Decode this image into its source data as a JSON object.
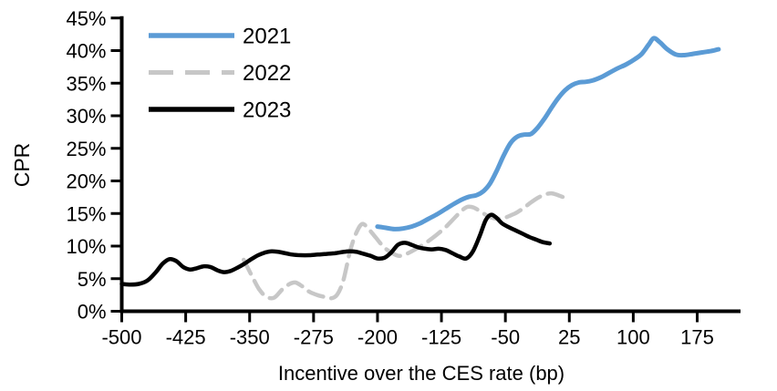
{
  "chart_data": {
    "type": "line",
    "title": "",
    "xlabel": "Incentive over the CES rate (bp)",
    "ylabel": "CPR",
    "xlim": [
      -500,
      227
    ],
    "ylim": [
      0,
      45
    ],
    "grid": false,
    "legend_position": "top-left-inside",
    "x_ticks": [
      -500,
      -425,
      -350,
      -275,
      -200,
      -125,
      -50,
      25,
      100,
      175
    ],
    "x_tick_labels": [
      "-500",
      "-425",
      "-350",
      "-275",
      "-200",
      "-125",
      "-50",
      "25",
      "100",
      "175"
    ],
    "y_ticks": [
      0,
      5,
      10,
      15,
      20,
      25,
      30,
      35,
      40,
      45
    ],
    "y_tick_labels": [
      "0%",
      "5%",
      "10%",
      "15%",
      "20%",
      "25%",
      "30%",
      "35%",
      "40%",
      "45%"
    ],
    "axis_color": "#000000",
    "series": [
      {
        "name": "2021",
        "color": "#5B9BD5",
        "dashed": false,
        "x": [
          -200,
          -190,
          -180,
          -170,
          -160,
          -150,
          -140,
          -130,
          -120,
          -110,
          -100,
          -92,
          -84,
          -76,
          -68,
          -60,
          -52,
          -44,
          -36,
          -28,
          -20,
          -12,
          -4,
          4,
          12,
          20,
          28,
          36,
          44,
          52,
          62,
          72,
          82,
          92,
          102,
          110,
          118,
          124,
          131,
          140,
          150,
          160,
          170,
          180,
          190,
          200
        ],
        "y": [
          13.0,
          12.8,
          12.6,
          12.7,
          13.0,
          13.5,
          14.2,
          14.9,
          15.7,
          16.5,
          17.2,
          17.6,
          17.8,
          18.4,
          19.6,
          21.6,
          23.9,
          25.8,
          26.8,
          27.1,
          27.2,
          28.2,
          29.6,
          31.2,
          32.7,
          33.9,
          34.7,
          35.1,
          35.2,
          35.4,
          35.9,
          36.6,
          37.3,
          37.9,
          38.7,
          39.5,
          40.9,
          41.9,
          41.3,
          40.2,
          39.4,
          39.3,
          39.5,
          39.7,
          39.9,
          40.2
        ]
      },
      {
        "name": "2022",
        "color": "#C7C7C7",
        "dashed": true,
        "x": [
          -357,
          -348,
          -339,
          -330,
          -321,
          -312,
          -303,
          -296,
          -288,
          -280,
          -271,
          -262,
          -254,
          -247,
          -240,
          -232,
          -225,
          -218,
          -211,
          -202,
          -193,
          -184,
          -175,
          -166,
          -157,
          -148,
          -139,
          -130,
          -121,
          -112,
          -103,
          -95,
          -87,
          -78,
          -69,
          -60,
          -52,
          -44,
          -36,
          -28,
          -20,
          -12,
          -4,
          4,
          12,
          20
        ],
        "y": [
          7.9,
          5.6,
          3.4,
          2.2,
          2.1,
          3.3,
          4.2,
          4.4,
          3.8,
          3.0,
          2.5,
          2.2,
          2.0,
          2.6,
          4.8,
          9.3,
          12.0,
          13.4,
          12.7,
          11.3,
          9.9,
          9.0,
          8.5,
          8.8,
          9.4,
          10.1,
          10.9,
          11.8,
          12.8,
          14.0,
          15.2,
          16.0,
          15.9,
          15.2,
          14.5,
          14.2,
          14.3,
          14.7,
          15.2,
          15.9,
          16.7,
          17.4,
          17.9,
          18.1,
          17.8,
          17.4
        ]
      },
      {
        "name": "2023",
        "color": "#000000",
        "dashed": false,
        "x": [
          -500,
          -490,
          -480,
          -470,
          -460,
          -452,
          -444,
          -436,
          -428,
          -420,
          -412,
          -404,
          -396,
          -388,
          -380,
          -372,
          -364,
          -356,
          -348,
          -340,
          -332,
          -324,
          -316,
          -308,
          -300,
          -290,
          -280,
          -270,
          -260,
          -250,
          -240,
          -232,
          -224,
          -216,
          -208,
          -200,
          -192,
          -184,
          -176,
          -168,
          -160,
          -152,
          -144,
          -136,
          -128,
          -120,
          -112,
          -104,
          -96,
          -88,
          -80,
          -73,
          -67,
          -61,
          -54,
          -46,
          -38,
          -30,
          -22,
          -14,
          -6,
          2
        ],
        "y": [
          4.2,
          4.1,
          4.2,
          4.7,
          6.0,
          7.3,
          8.0,
          7.7,
          6.8,
          6.4,
          6.6,
          6.9,
          6.8,
          6.3,
          6.0,
          6.2,
          6.7,
          7.3,
          8.0,
          8.6,
          9.0,
          9.2,
          9.1,
          8.9,
          8.7,
          8.6,
          8.6,
          8.7,
          8.8,
          8.9,
          9.1,
          9.2,
          9.1,
          8.8,
          8.5,
          8.1,
          8.2,
          9.0,
          10.2,
          10.5,
          10.2,
          9.8,
          9.6,
          9.5,
          9.6,
          9.4,
          8.9,
          8.4,
          8.1,
          9.2,
          11.6,
          14.0,
          14.8,
          14.4,
          13.5,
          12.9,
          12.4,
          11.9,
          11.4,
          11.0,
          10.6,
          10.4
        ]
      }
    ]
  }
}
